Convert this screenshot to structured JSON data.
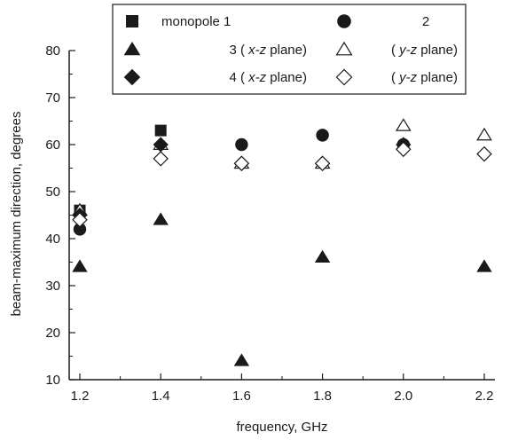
{
  "chart_data": {
    "type": "scatter",
    "title": "",
    "xlabel": "frequency, GHz",
    "ylabel": "beam-maximum direction, degrees",
    "xlim": [
      1.2,
      2.2
    ],
    "ylim": [
      10,
      80
    ],
    "xticks": [
      "1.2",
      "1.4",
      "1.6",
      "1.8",
      "2.0",
      "2.2"
    ],
    "yticks": [
      "10",
      "20",
      "30",
      "40",
      "50",
      "60",
      "70",
      "80"
    ],
    "grid": false,
    "legend_position": "top",
    "series": [
      {
        "key": "s1",
        "legend": [
          "monopole 1"
        ],
        "marker": "square",
        "filled": true,
        "x": [
          1.2,
          1.4
        ],
        "y": [
          46,
          63
        ]
      },
      {
        "key": "s2",
        "legend": [
          "2"
        ],
        "marker": "circle",
        "filled": true,
        "x": [
          1.2,
          1.6,
          1.8,
          2.0
        ],
        "y": [
          42,
          60,
          62,
          60
        ]
      },
      {
        "key": "s3xz",
        "legend": [
          "3 (",
          "x-z",
          "plane)"
        ],
        "marker": "triangle",
        "filled": true,
        "x": [
          1.2,
          1.4,
          1.6,
          1.8,
          2.2
        ],
        "y": [
          34,
          44,
          14,
          36,
          34
        ]
      },
      {
        "key": "s3yz",
        "legend": [
          "(",
          "y-z",
          "plane)"
        ],
        "marker": "triangle",
        "filled": false,
        "x": [
          1.2,
          1.4,
          1.6,
          1.8,
          2.0,
          2.2
        ],
        "y": [
          46,
          60,
          56,
          56,
          64,
          62
        ]
      },
      {
        "key": "s4xz",
        "legend": [
          "4 (",
          "x-z",
          "plane)"
        ],
        "marker": "diamond",
        "filled": true,
        "x": [
          1.2,
          1.4,
          1.6,
          1.8,
          2.0
        ],
        "y": [
          45,
          60,
          56,
          56,
          60
        ]
      },
      {
        "key": "s4yz",
        "legend": [
          "(",
          "y-z",
          "plane)"
        ],
        "marker": "diamond",
        "filled": false,
        "x": [
          1.2,
          1.4,
          1.6,
          1.8,
          2.0,
          2.2
        ],
        "y": [
          44,
          57,
          56,
          56,
          59,
          58
        ]
      }
    ]
  }
}
